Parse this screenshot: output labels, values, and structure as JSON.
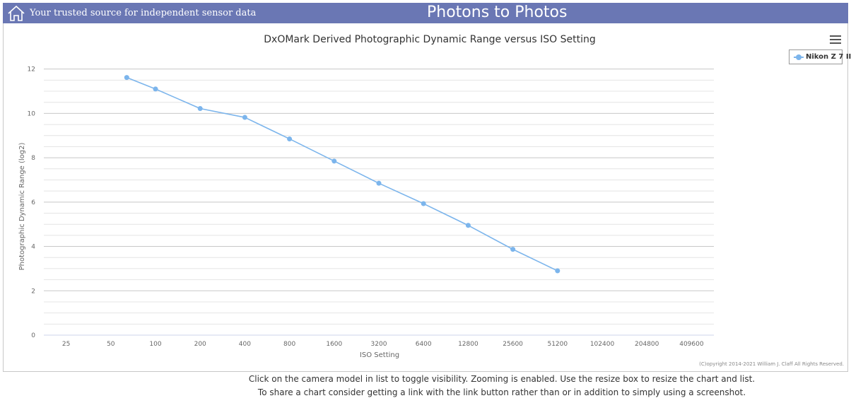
{
  "header": {
    "tagline": "Your trusted source for independent sensor data",
    "site_title": "Photons to Photos",
    "bg_color": "#6a77b4"
  },
  "chart_data": {
    "type": "line",
    "title": "DxOMark Derived Photographic Dynamic Range versus ISO Setting",
    "xlabel": "ISO Setting",
    "ylabel": "Photographic Dynamic Range (log2)",
    "x_scale": "log2",
    "x_ticks": [
      "25",
      "50",
      "100",
      "200",
      "400",
      "800",
      "1600",
      "3200",
      "6400",
      "12800",
      "25600",
      "51200",
      "102400",
      "204800",
      "409600"
    ],
    "y_ticks": [
      0,
      2,
      4,
      6,
      8,
      10,
      12
    ],
    "ylim": [
      0,
      12.5
    ],
    "grid": true,
    "legend_position": "top-right",
    "series": [
      {
        "name": "Nikon Z 7 II",
        "color": "#7cb5ec",
        "points": [
          {
            "iso": 64,
            "dr": 11.62
          },
          {
            "iso": 100,
            "dr": 11.1
          },
          {
            "iso": 200,
            "dr": 10.22
          },
          {
            "iso": 400,
            "dr": 9.82
          },
          {
            "iso": 800,
            "dr": 8.85
          },
          {
            "iso": 1600,
            "dr": 7.85
          },
          {
            "iso": 3200,
            "dr": 6.85
          },
          {
            "iso": 6400,
            "dr": 5.93
          },
          {
            "iso": 12800,
            "dr": 4.95
          },
          {
            "iso": 25600,
            "dr": 3.87
          },
          {
            "iso": 51200,
            "dr": 2.9
          }
        ]
      }
    ],
    "credit": "(C)opyright 2014-2021 William J. Claff All Rights Reserved."
  },
  "footer": {
    "line1": "Click on the camera model in list to toggle visibility. Zooming is enabled. Use the resize box to resize the chart and list.",
    "line2": "To share a chart consider getting a link with the link button rather than or in addition to simply using a screenshot."
  }
}
